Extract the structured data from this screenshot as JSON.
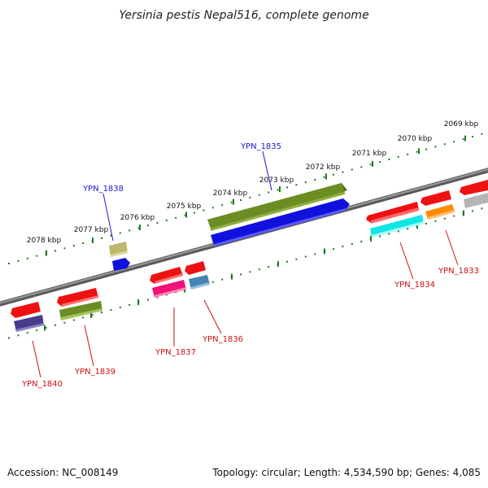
{
  "title": "Yersinia pestis Nepal516, complete genome",
  "accession_label": "Accession: NC_008149",
  "topology_label": "Topology: circular; Length: 4,534,590 bp; Genes: 4,085",
  "upper_scale": {
    "labels": [
      "2078 kbp",
      "2077 kbp",
      "2076 kbp",
      "2075 kbp",
      "2074 kbp",
      "2073 kbp",
      "2072 kbp",
      "2071 kbp",
      "2070 kbp",
      "2069 kbp"
    ]
  },
  "colors": {
    "red": "#ee1111",
    "olive": "#6b8e23",
    "blue": "#1111dd",
    "khaki": "#bdb76b",
    "magenta": "#ee1177",
    "steel": "#4682b4",
    "cyan": "#11e6e6",
    "orange": "#ff8c00",
    "slate": "#483d8b",
    "gray": "#b4b4b4",
    "tick": "#1f7a1f"
  },
  "genes": {
    "YPN_1835": "YPN_1835",
    "YPN_1838": "YPN_1838",
    "YPN_1834": "YPN_1834",
    "YPN_1833": "YPN_1833",
    "YPN_1836": "YPN_1836",
    "YPN_1837": "YPN_1837",
    "YPN_1839": "YPN_1839",
    "YPN_1840": "YPN_1840"
  }
}
